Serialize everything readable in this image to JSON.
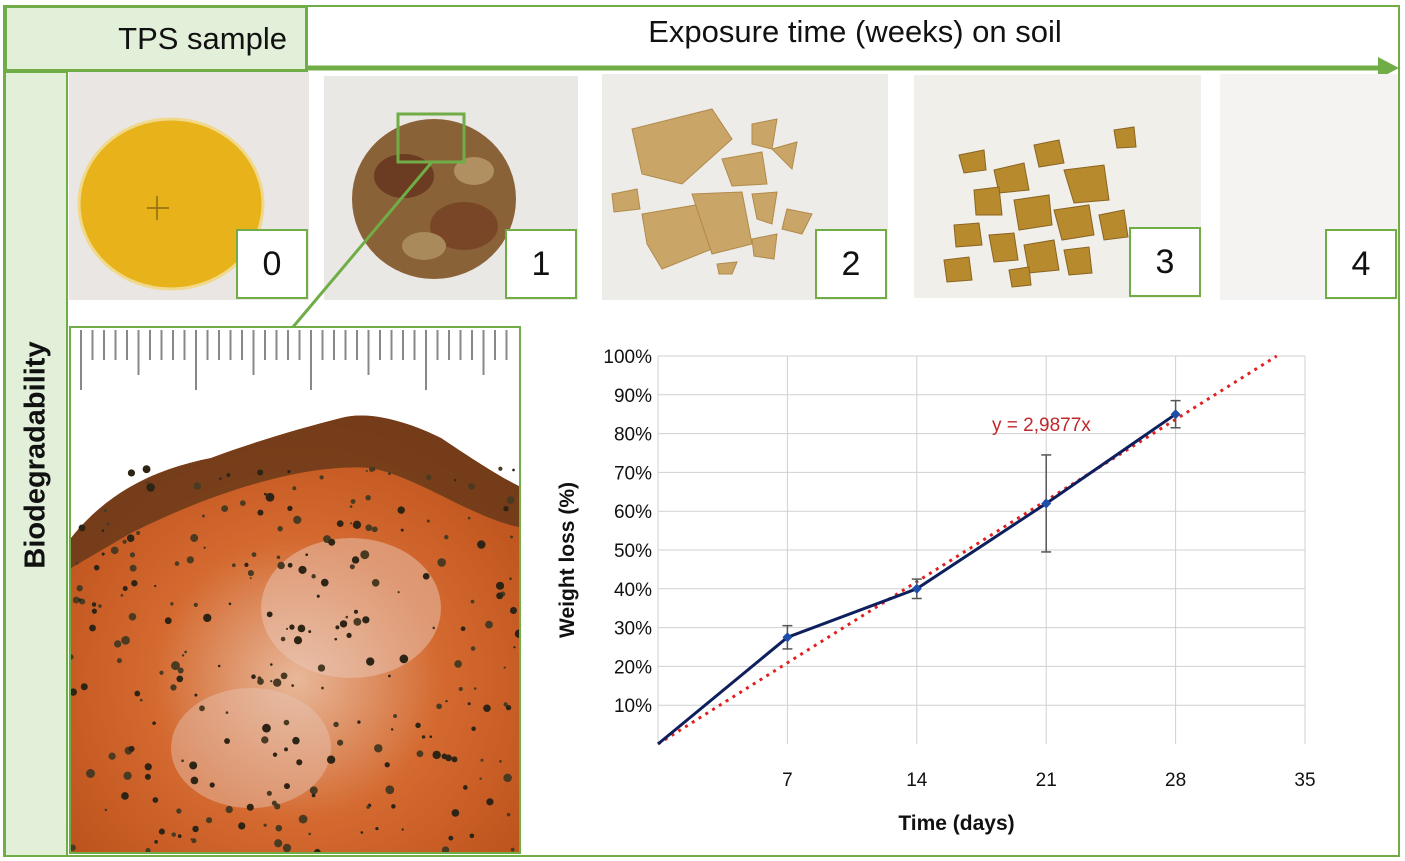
{
  "header": {
    "sample_label": "TPS sample",
    "exposure_label": "Exposure time (weeks) on soil"
  },
  "side_label": "Biodegradability",
  "samples": [
    {
      "week": "0"
    },
    {
      "week": "1"
    },
    {
      "week": "2"
    },
    {
      "week": "3"
    },
    {
      "week": "4"
    }
  ],
  "colors": {
    "accent_green": "#70ad47",
    "band_green": "#e2efd9",
    "series_navy": "#0d1f5c",
    "trend_red": "#e02020",
    "equation_red": "#c0282a"
  },
  "chart_data": {
    "type": "line",
    "xlabel": "Time (days)",
    "ylabel": "Weight loss (%)",
    "x_ticks": [
      "7",
      "14",
      "21",
      "28",
      "35"
    ],
    "y_ticks": [
      "10%",
      "20%",
      "30%",
      "40%",
      "50%",
      "60%",
      "70%",
      "80%",
      "90%",
      "100%"
    ],
    "xlim": [
      0,
      35
    ],
    "ylim": [
      0,
      100
    ],
    "grid": true,
    "series": [
      {
        "x": [
          0,
          7,
          14,
          21,
          28
        ],
        "y": [
          0,
          27.5,
          40,
          62,
          85
        ],
        "error": [
          0,
          3,
          2.5,
          12.5,
          3.5
        ]
      }
    ],
    "trendline": {
      "equation": "y = 2,9877x",
      "slope": 2.9877
    }
  }
}
